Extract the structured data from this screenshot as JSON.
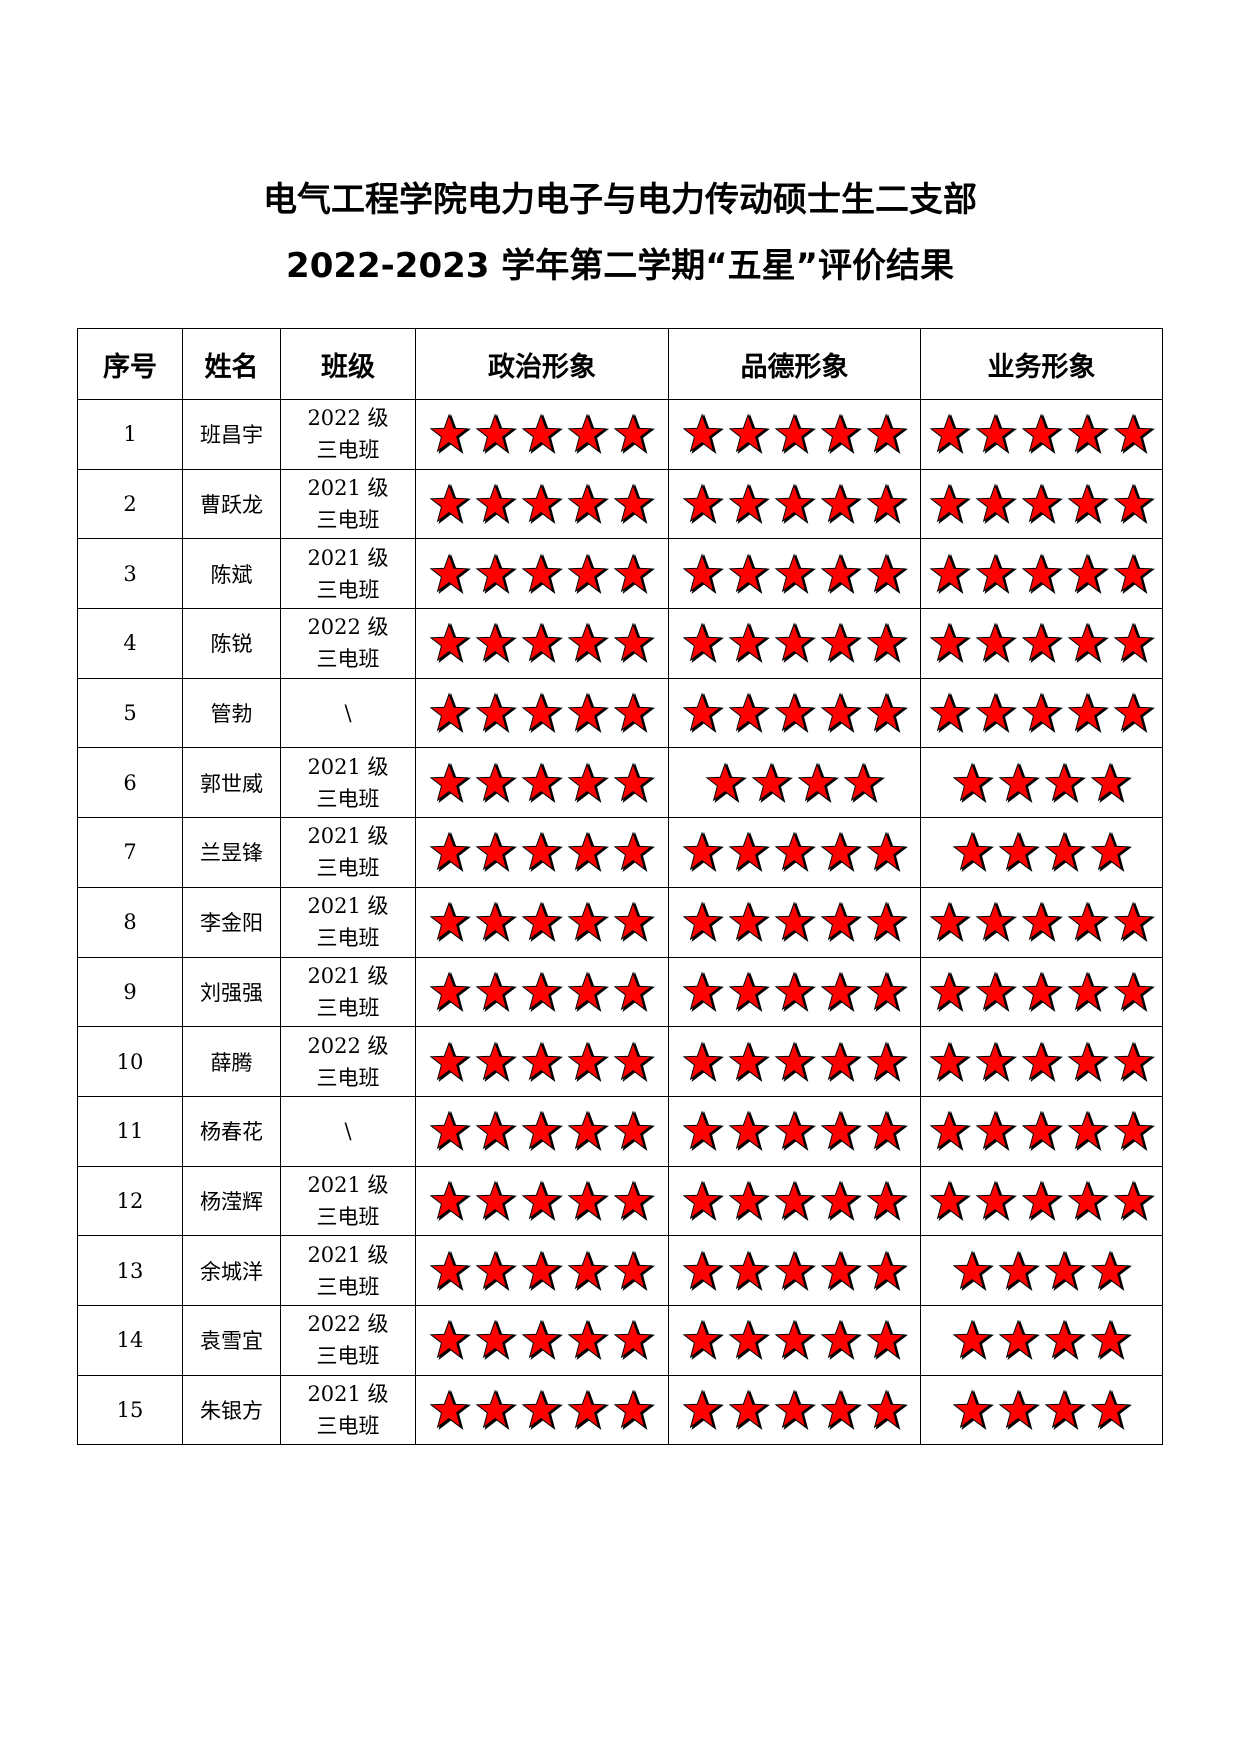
{
  "title": {
    "line1": "电气工程学院电力电子与电力传动硕士生二支部",
    "line2": "2022-2023 学年第二学期“五星”评价结果"
  },
  "table": {
    "headers": [
      "序号",
      "姓名",
      "班级",
      "政治形象",
      "品德形象",
      "业务形象"
    ],
    "star_color": "#ff0000",
    "rows": [
      {
        "no": "1",
        "name": "班昌宇",
        "class_year": "2022 级",
        "class_name": "三电班",
        "political": 5,
        "moral": 5,
        "work": 5
      },
      {
        "no": "2",
        "name": "曹跃龙",
        "class_year": "2021 级",
        "class_name": "三电班",
        "political": 5,
        "moral": 5,
        "work": 5
      },
      {
        "no": "3",
        "name": "陈斌",
        "class_year": "2021 级",
        "class_name": "三电班",
        "political": 5,
        "moral": 5,
        "work": 5
      },
      {
        "no": "4",
        "name": "陈锐",
        "class_year": "2022 级",
        "class_name": "三电班",
        "political": 5,
        "moral": 5,
        "work": 5
      },
      {
        "no": "5",
        "name": "管勃",
        "class_year": "\\",
        "class_name": "",
        "political": 5,
        "moral": 5,
        "work": 5
      },
      {
        "no": "6",
        "name": "郭世威",
        "class_year": "2021 级",
        "class_name": "三电班",
        "political": 5,
        "moral": 4,
        "work": 4
      },
      {
        "no": "7",
        "name": "兰昱锋",
        "class_year": "2021 级",
        "class_name": "三电班",
        "political": 5,
        "moral": 5,
        "work": 4
      },
      {
        "no": "8",
        "name": "李金阳",
        "class_year": "2021 级",
        "class_name": "三电班",
        "political": 5,
        "moral": 5,
        "work": 5
      },
      {
        "no": "9",
        "name": "刘强强",
        "class_year": "2021 级",
        "class_name": "三电班",
        "political": 5,
        "moral": 5,
        "work": 5
      },
      {
        "no": "10",
        "name": "薛腾",
        "class_year": "2022 级",
        "class_name": "三电班",
        "political": 5,
        "moral": 5,
        "work": 5
      },
      {
        "no": "11",
        "name": "杨春花",
        "class_year": "\\",
        "class_name": "",
        "political": 5,
        "moral": 5,
        "work": 5
      },
      {
        "no": "12",
        "name": "杨滢辉",
        "class_year": "2021 级",
        "class_name": "三电班",
        "political": 5,
        "moral": 5,
        "work": 5
      },
      {
        "no": "13",
        "name": "余城洋",
        "class_year": "2021 级",
        "class_name": "三电班",
        "political": 5,
        "moral": 5,
        "work": 4
      },
      {
        "no": "14",
        "name": "袁雪宜",
        "class_year": "2022 级",
        "class_name": "三电班",
        "political": 5,
        "moral": 5,
        "work": 4
      },
      {
        "no": "15",
        "name": "朱银方",
        "class_year": "2021 级",
        "class_name": "三电班",
        "political": 5,
        "moral": 5,
        "work": 4
      }
    ]
  }
}
